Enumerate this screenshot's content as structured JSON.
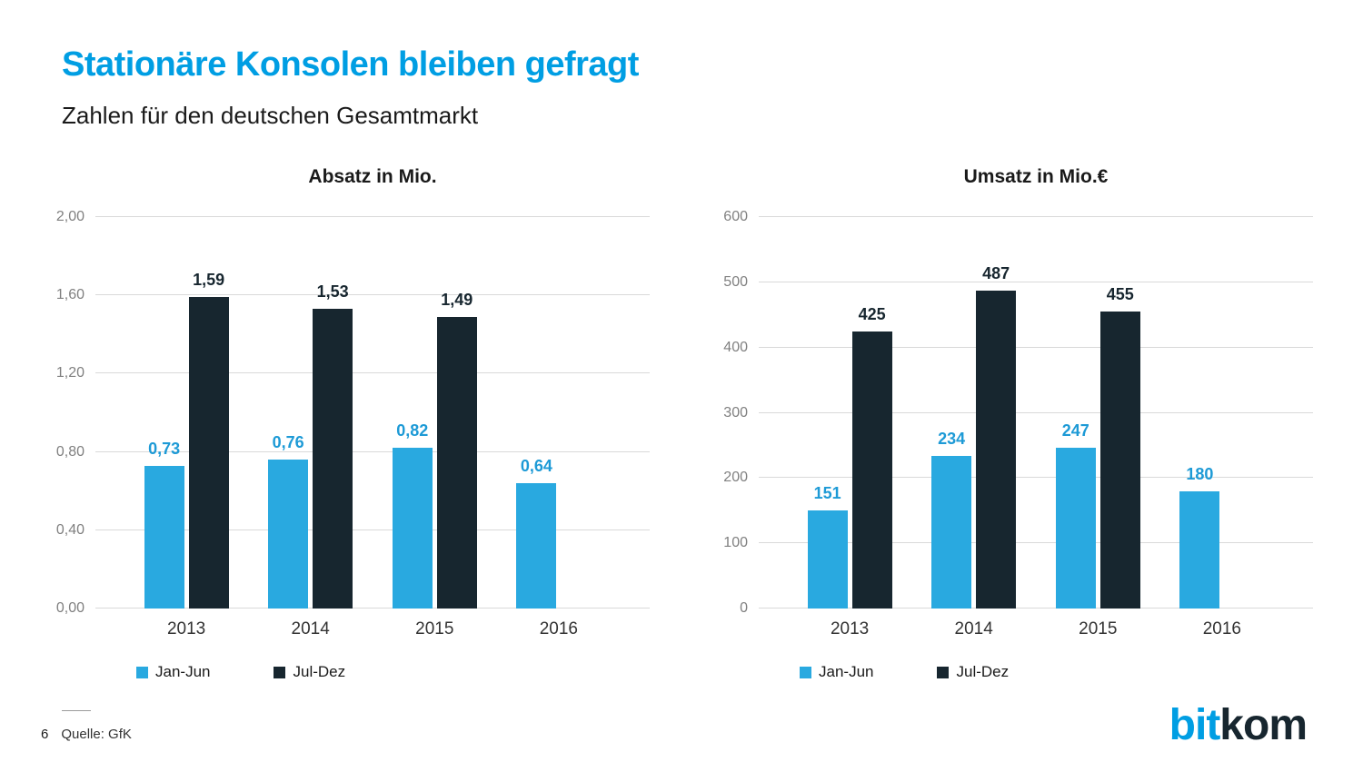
{
  "page": {
    "title": "Stationäre Konsolen bleiben gefragt",
    "subtitle": "Zahlen für den deutschen Gesamtmarkt",
    "footer": {
      "page_number": "6",
      "source": "Quelle: GfK"
    },
    "logo": {
      "part1": "bit",
      "part2": "kom"
    }
  },
  "colors": {
    "accent_blue": "#009EE3",
    "series_blue": "#29A9E0",
    "series_dark": "#17262F",
    "gridline": "#D9D9D9",
    "ytick_text": "#808080",
    "xlabel_text": "#333333"
  },
  "chart_data": [
    {
      "type": "bar",
      "title": "Absatz in Mio.",
      "categories": [
        "2013",
        "2014",
        "2015",
        "2016"
      ],
      "series": [
        {
          "name": "Jan-Jun",
          "color": "#29A9E0",
          "label_color": "#1D9AD6",
          "values": [
            0.73,
            0.76,
            0.82,
            0.64
          ],
          "labels": [
            "0,73",
            "0,76",
            "0,82",
            "0,64"
          ]
        },
        {
          "name": "Jul-Dez",
          "color": "#17262F",
          "label_color": "#17262F",
          "values": [
            1.59,
            1.53,
            1.49,
            null
          ],
          "labels": [
            "1,59",
            "1,53",
            "1,49",
            null
          ]
        }
      ],
      "ylim": [
        0,
        2.0
      ],
      "yticks": [
        0.0,
        0.4,
        0.8,
        1.2,
        1.6,
        2.0
      ],
      "ytick_labels": [
        "0,00",
        "0,40",
        "0,80",
        "1,20",
        "1,60",
        "2,00"
      ],
      "grid": true,
      "legend_position": "bottom"
    },
    {
      "type": "bar",
      "title": "Umsatz in Mio.€",
      "categories": [
        "2013",
        "2014",
        "2015",
        "2016"
      ],
      "series": [
        {
          "name": "Jan-Jun",
          "color": "#29A9E0",
          "label_color": "#1D9AD6",
          "values": [
            151,
            234,
            247,
            180
          ],
          "labels": [
            "151",
            "234",
            "247",
            "180"
          ]
        },
        {
          "name": "Jul-Dez",
          "color": "#17262F",
          "label_color": "#17262F",
          "values": [
            425,
            487,
            455,
            null
          ],
          "labels": [
            "425",
            "487",
            "455",
            null
          ]
        }
      ],
      "ylim": [
        0,
        600
      ],
      "yticks": [
        0,
        100,
        200,
        300,
        400,
        500,
        600
      ],
      "ytick_labels": [
        "0",
        "100",
        "200",
        "300",
        "400",
        "500",
        "600"
      ],
      "grid": true,
      "legend_position": "bottom"
    }
  ]
}
